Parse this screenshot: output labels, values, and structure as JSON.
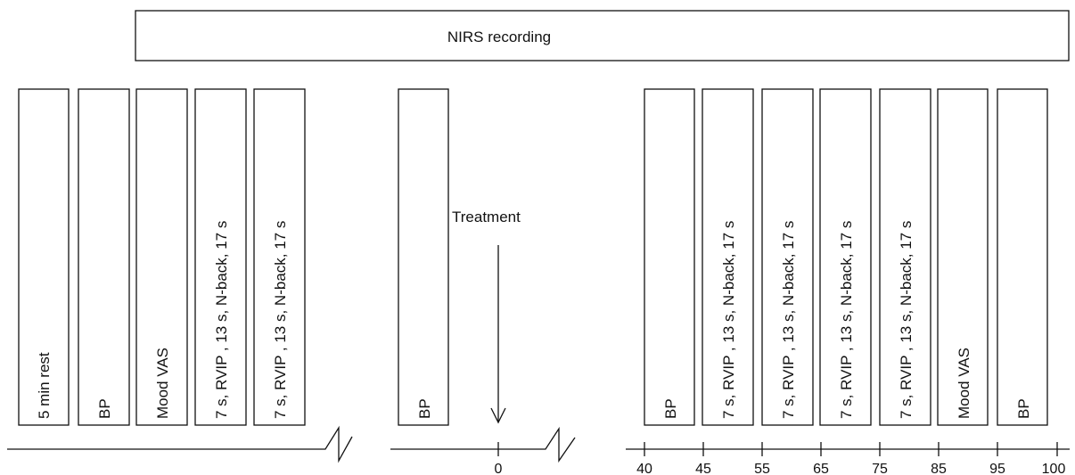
{
  "header": {
    "label": "NIRS recording"
  },
  "pre_blocks": [
    "5 min rest",
    "BP",
    "Mood VAS",
    "7 s, RVIP , 13 s, N-back, 17 s",
    "7 s, RVIP , 13 s, N-back, 17 s"
  ],
  "mid_blocks": [
    "BP"
  ],
  "treatment": {
    "label": "Treatment",
    "time_label": "0"
  },
  "post_blocks": [
    "BP",
    "7 s, RVIP , 13 s, N-back, 17 s",
    "7 s, RVIP , 13 s, N-back, 17 s",
    "7 s, RVIP , 13 s, N-back, 17 s",
    "7 s, RVIP , 13 s, N-back, 17 s",
    "Mood VAS",
    "BP"
  ],
  "timeline_ticks": [
    "40",
    "45",
    "55",
    "65",
    "75",
    "85",
    "95",
    "100"
  ]
}
